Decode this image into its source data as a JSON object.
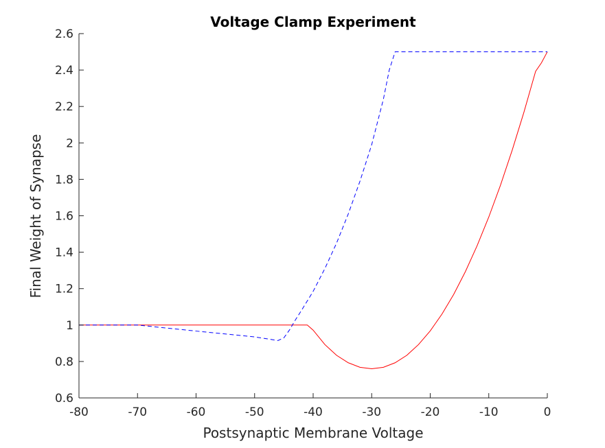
{
  "chart_data": {
    "type": "line",
    "title": "Voltage Clamp Experiment",
    "xlabel": "Postsynaptic Membrane Voltage",
    "ylabel": "Final Weight of Synapse",
    "xlim": [
      -80,
      0
    ],
    "ylim": [
      0.6,
      2.6
    ],
    "xticks": [
      -80,
      -70,
      -60,
      -50,
      -40,
      -30,
      -20,
      -10,
      0
    ],
    "yticks": [
      0.6,
      0.8,
      1,
      1.2,
      1.4,
      1.6,
      1.8,
      2,
      2.2,
      2.4,
      2.6
    ],
    "xtick_labels": [
      "-80",
      "-70",
      "-60",
      "-50",
      "-40",
      "-30",
      "-20",
      "-10",
      "0"
    ],
    "ytick_labels": [
      "0.6",
      "0.8",
      "1",
      "1.2",
      "1.4",
      "1.6",
      "1.8",
      "2",
      "2.2",
      "2.4",
      "2.6"
    ],
    "grid": false,
    "legend": null,
    "series": [
      {
        "color": "#ff0000",
        "style": "solid",
        "x": [
          -80,
          -70,
          -60,
          -50,
          -45,
          -41,
          -40,
          -38,
          -36,
          -34,
          -32,
          -30,
          -28,
          -26,
          -24,
          -22,
          -20,
          -18,
          -16,
          -14,
          -12,
          -10,
          -8,
          -6,
          -4,
          -2,
          -1,
          0
        ],
        "y": [
          1.0,
          1.0,
          1.0,
          1.0,
          1.0,
          1.0,
          0.972,
          0.893,
          0.834,
          0.793,
          0.768,
          0.76,
          0.768,
          0.793,
          0.834,
          0.893,
          0.968,
          1.06,
          1.168,
          1.293,
          1.435,
          1.593,
          1.768,
          1.96,
          2.168,
          2.393,
          2.44,
          2.5
        ]
      },
      {
        "color": "#0000ff",
        "style": "dashed",
        "x": [
          -80,
          -70,
          -60,
          -50,
          -46,
          -45,
          -44,
          -43,
          -42,
          -40,
          -38,
          -36,
          -34,
          -32,
          -30,
          -28,
          -27,
          -26,
          -20,
          -10,
          0
        ],
        "y": [
          1.0,
          1.0,
          0.967,
          0.935,
          0.915,
          0.93,
          0.975,
          1.03,
          1.08,
          1.185,
          1.31,
          1.45,
          1.61,
          1.79,
          1.99,
          2.24,
          2.4,
          2.5,
          2.5,
          2.5,
          2.5
        ]
      }
    ]
  }
}
